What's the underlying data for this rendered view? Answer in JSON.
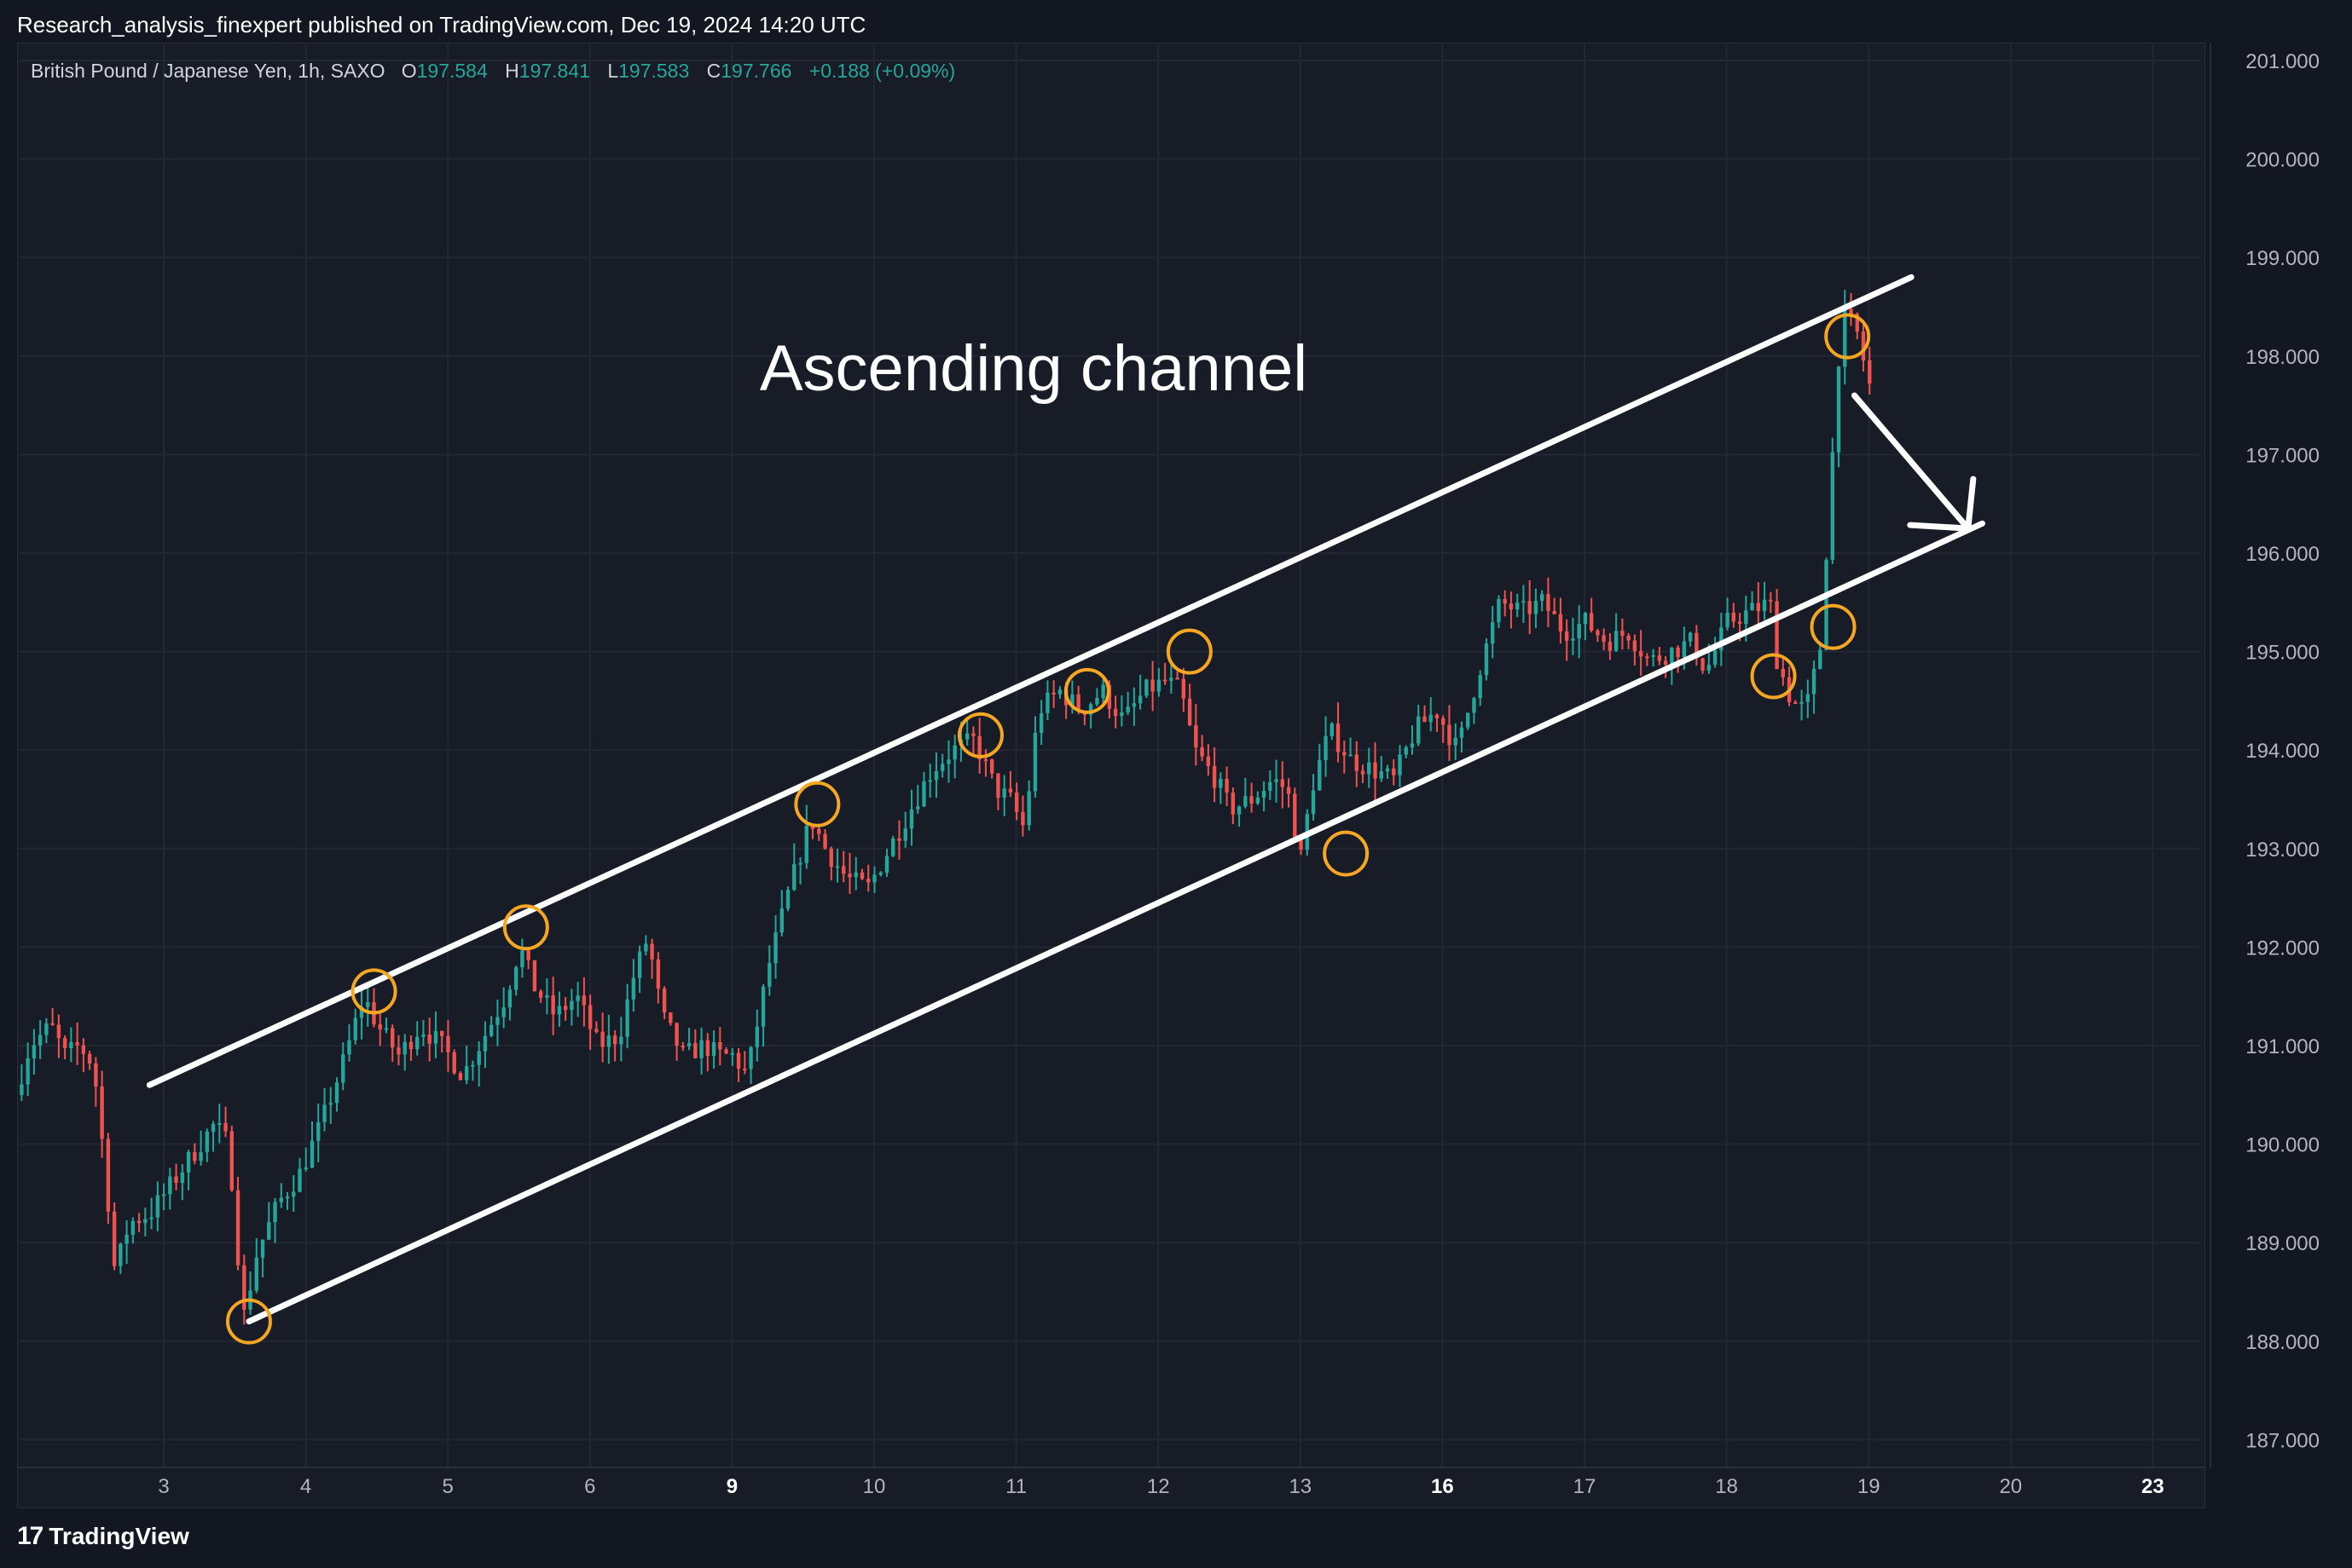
{
  "header": {
    "published": "Research_analysis_finexpert published on TradingView.com, Dec 19, 2024 14:20 UTC"
  },
  "legend": {
    "symbol": "British Pound / Japanese Yen, 1h, SAXO",
    "o_label": "O",
    "o_value": "197.584",
    "h_label": "H",
    "h_value": "197.841",
    "l_label": "L",
    "l_value": "197.583",
    "c_label": "C",
    "c_value": "197.766",
    "change": "+0.188 (+0.09%)"
  },
  "footer": {
    "brand": "TradingView",
    "logo_mark": "17"
  },
  "colors": {
    "background": "#131722",
    "pane": "#181c27",
    "up": "#26a69a",
    "down": "#ef5350",
    "channel": "#ffffff",
    "touch_circle": "#f5a623",
    "grid": "#232733",
    "axis_text": "#b2b5be"
  },
  "chart_data": {
    "type": "candlestick",
    "annotation": "Ascending channel",
    "ylim": [
      186.8,
      201.4
    ],
    "y_ticks": [
      "201.000",
      "200.000",
      "199.000",
      "198.000",
      "197.000",
      "196.000",
      "195.000",
      "194.000",
      "193.000",
      "192.000",
      "191.000",
      "190.000",
      "189.000",
      "188.000",
      "187.000"
    ],
    "x_ticks": [
      {
        "label": "3",
        "bold": false,
        "t": 3
      },
      {
        "label": "4",
        "bold": false,
        "t": 4
      },
      {
        "label": "5",
        "bold": false,
        "t": 5
      },
      {
        "label": "6",
        "bold": false,
        "t": 6
      },
      {
        "label": "9",
        "bold": true,
        "t": 7
      },
      {
        "label": "10",
        "bold": false,
        "t": 8
      },
      {
        "label": "11",
        "bold": false,
        "t": 9
      },
      {
        "label": "12",
        "bold": false,
        "t": 10
      },
      {
        "label": "13",
        "bold": false,
        "t": 11
      },
      {
        "label": "16",
        "bold": true,
        "t": 12
      },
      {
        "label": "17",
        "bold": false,
        "t": 13
      },
      {
        "label": "18",
        "bold": false,
        "t": 14
      },
      {
        "label": "19",
        "bold": false,
        "t": 15
      },
      {
        "label": "20",
        "bold": false,
        "t": 16
      },
      {
        "label": "23",
        "bold": true,
        "t": 17
      }
    ],
    "price_path": [
      [
        2.0,
        190.5
      ],
      [
        2.1,
        191.0
      ],
      [
        2.25,
        191.2
      ],
      [
        2.35,
        190.9
      ],
      [
        2.45,
        191.0
      ],
      [
        2.55,
        190.8
      ],
      [
        2.62,
        189.9
      ],
      [
        2.7,
        188.7
      ],
      [
        2.8,
        189.2
      ],
      [
        2.95,
        189.3
      ],
      [
        3.1,
        189.6
      ],
      [
        3.25,
        189.9
      ],
      [
        3.4,
        190.2
      ],
      [
        3.5,
        190.0
      ],
      [
        3.55,
        189.2
      ],
      [
        3.6,
        188.2
      ],
      [
        3.7,
        188.9
      ],
      [
        3.85,
        189.4
      ],
      [
        4.0,
        189.7
      ],
      [
        4.15,
        190.2
      ],
      [
        4.3,
        190.8
      ],
      [
        4.45,
        191.5
      ],
      [
        4.55,
        191.2
      ],
      [
        4.7,
        190.9
      ],
      [
        4.85,
        191.2
      ],
      [
        5.0,
        191.0
      ],
      [
        5.15,
        190.7
      ],
      [
        5.3,
        191.1
      ],
      [
        5.45,
        191.5
      ],
      [
        5.55,
        192.0
      ],
      [
        5.65,
        191.6
      ],
      [
        5.8,
        191.3
      ],
      [
        5.95,
        191.5
      ],
      [
        6.1,
        191.0
      ],
      [
        6.25,
        191.1
      ],
      [
        6.35,
        191.7
      ],
      [
        6.45,
        192.1
      ],
      [
        6.55,
        191.3
      ],
      [
        6.7,
        190.9
      ],
      [
        6.85,
        191.0
      ],
      [
        6.95,
        190.9
      ],
      [
        7.05,
        190.9
      ],
      [
        7.15,
        190.7
      ],
      [
        7.3,
        191.8
      ],
      [
        7.45,
        192.6
      ],
      [
        7.6,
        193.3
      ],
      [
        7.7,
        193.0
      ],
      [
        7.85,
        192.7
      ],
      [
        8.0,
        192.6
      ],
      [
        8.15,
        193.0
      ],
      [
        8.3,
        193.4
      ],
      [
        8.45,
        193.8
      ],
      [
        8.6,
        194.0
      ],
      [
        8.75,
        194.1
      ],
      [
        8.9,
        193.6
      ],
      [
        9.0,
        193.5
      ],
      [
        9.1,
        193.2
      ],
      [
        9.2,
        194.4
      ],
      [
        9.35,
        194.6
      ],
      [
        9.5,
        194.4
      ],
      [
        9.65,
        194.6
      ],
      [
        9.8,
        194.3
      ],
      [
        9.95,
        194.6
      ],
      [
        10.1,
        194.7
      ],
      [
        10.2,
        194.6
      ],
      [
        10.3,
        194.0
      ],
      [
        10.45,
        193.7
      ],
      [
        10.55,
        193.4
      ],
      [
        10.7,
        193.5
      ],
      [
        10.85,
        193.7
      ],
      [
        10.95,
        193.6
      ],
      [
        11.05,
        192.9
      ],
      [
        11.12,
        193.6
      ],
      [
        11.25,
        194.2
      ],
      [
        11.4,
        193.9
      ],
      [
        11.55,
        193.8
      ],
      [
        11.7,
        193.7
      ],
      [
        11.85,
        194.2
      ],
      [
        12.0,
        194.4
      ],
      [
        12.15,
        194.0
      ],
      [
        12.3,
        194.8
      ],
      [
        12.45,
        195.5
      ],
      [
        12.6,
        195.4
      ],
      [
        12.75,
        195.5
      ],
      [
        12.9,
        195.2
      ],
      [
        13.05,
        195.3
      ],
      [
        13.2,
        195.1
      ],
      [
        13.35,
        195.2
      ],
      [
        13.5,
        194.9
      ],
      [
        13.65,
        195.0
      ],
      [
        13.8,
        195.1
      ],
      [
        13.9,
        194.8
      ],
      [
        14.05,
        195.3
      ],
      [
        14.2,
        195.4
      ],
      [
        14.35,
        195.5
      ],
      [
        14.4,
        194.9
      ],
      [
        14.5,
        194.5
      ],
      [
        14.6,
        194.4
      ],
      [
        14.7,
        195.0
      ],
      [
        14.78,
        196.8
      ],
      [
        14.85,
        198.4
      ],
      [
        14.95,
        198.3
      ],
      [
        15.05,
        197.7
      ]
    ],
    "channel_upper": {
      "start": [
        2.9,
        190.6
      ],
      "end": [
        15.3,
        198.8
      ]
    },
    "channel_lower": {
      "start": [
        3.6,
        188.2
      ],
      "end": [
        15.8,
        196.3
      ]
    },
    "touch_points": [
      [
        3.6,
        188.2
      ],
      [
        4.48,
        191.55
      ],
      [
        5.55,
        192.2
      ],
      [
        7.6,
        193.45
      ],
      [
        8.75,
        194.15
      ],
      [
        9.5,
        194.6
      ],
      [
        10.22,
        195.0
      ],
      [
        11.32,
        192.95
      ],
      [
        14.33,
        194.75
      ],
      [
        14.75,
        195.25
      ],
      [
        14.85,
        198.2
      ]
    ],
    "projection_arrow": {
      "start": [
        14.9,
        197.6
      ],
      "end": [
        15.7,
        196.25
      ]
    }
  }
}
